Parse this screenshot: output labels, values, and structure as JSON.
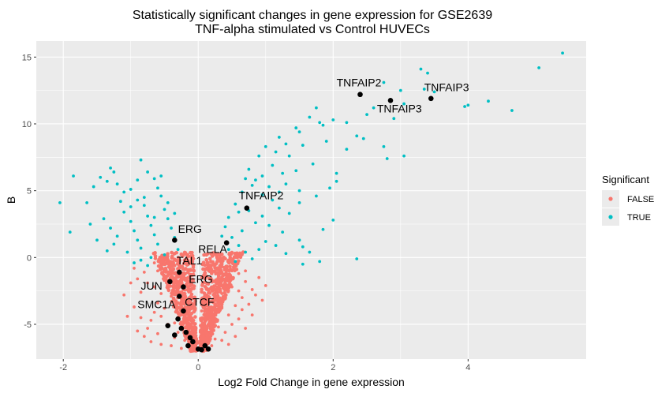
{
  "chart_data": {
    "type": "scatter",
    "title_line1": "Statistically significant changes in gene expression for GSE2639",
    "title_line2": "TNF-alpha stimulated vs Control HUVECs",
    "xlabel": "Log2 Fold Change in gene expression",
    "ylabel": "B",
    "xlim": [
      -2.4,
      5.75
    ],
    "ylim": [
      -7.6,
      16.2
    ],
    "x_ticks": [
      -2,
      0,
      2,
      4
    ],
    "y_ticks": [
      -5,
      0,
      5,
      10,
      15
    ],
    "grid": true,
    "legend": {
      "title": "Significant",
      "placement": "right",
      "entries": [
        {
          "label": "FALSE",
          "color": "#F8766D"
        },
        {
          "label": "TRUE",
          "color": "#00BFC4"
        }
      ]
    },
    "colors": {
      "false": "#F8766D",
      "true": "#00BFC4",
      "highlight": "#000000",
      "panel": "#EBEBEB",
      "grid": "#FFFFFF"
    },
    "series": [
      {
        "name": "TRUE",
        "color": "#00BFC4",
        "points": [
          [
            5.4,
            15.3
          ],
          [
            5.05,
            14.2
          ],
          [
            3.3,
            14.1
          ],
          [
            3.4,
            13.8
          ],
          [
            2.75,
            13.1
          ],
          [
            3.0,
            12.5
          ],
          [
            3.35,
            12.6
          ],
          [
            3.5,
            12.4
          ],
          [
            4.3,
            11.7
          ],
          [
            4.0,
            11.4
          ],
          [
            4.65,
            11.0
          ],
          [
            3.95,
            11.3
          ],
          [
            3.05,
            11.5
          ],
          [
            2.6,
            11.2
          ],
          [
            2.5,
            10.7
          ],
          [
            2.9,
            10.4
          ],
          [
            2.2,
            10.1
          ],
          [
            2.0,
            10.3
          ],
          [
            1.8,
            10.1
          ],
          [
            1.75,
            11.2
          ],
          [
            1.85,
            9.9
          ],
          [
            1.65,
            10.5
          ],
          [
            1.5,
            9.4
          ],
          [
            1.3,
            8.5
          ],
          [
            1.45,
            9.7
          ],
          [
            1.2,
            9.0
          ],
          [
            1.0,
            8.3
          ],
          [
            0.9,
            7.6
          ],
          [
            1.15,
            7.9
          ],
          [
            1.35,
            7.6
          ],
          [
            1.55,
            8.4
          ],
          [
            1.9,
            8.7
          ],
          [
            2.35,
            9.1
          ],
          [
            2.45,
            8.9
          ],
          [
            2.2,
            8.1
          ],
          [
            2.75,
            8.3
          ],
          [
            3.05,
            7.6
          ],
          [
            2.8,
            7.4
          ],
          [
            1.7,
            7.0
          ],
          [
            1.45,
            6.5
          ],
          [
            1.25,
            6.3
          ],
          [
            1.1,
            6.9
          ],
          [
            0.95,
            6.1
          ],
          [
            0.85,
            5.8
          ],
          [
            1.3,
            5.5
          ],
          [
            1.5,
            5.0
          ],
          [
            1.75,
            4.6
          ],
          [
            1.95,
            5.2
          ],
          [
            2.05,
            6.3
          ],
          [
            2.05,
            5.7
          ],
          [
            1.5,
            4.1
          ],
          [
            1.2,
            3.7
          ],
          [
            1.35,
            3.3
          ],
          [
            1.1,
            4.3
          ],
          [
            0.95,
            3.1
          ],
          [
            1.05,
            2.4
          ],
          [
            1.25,
            1.9
          ],
          [
            1.5,
            1.3
          ],
          [
            1.65,
            0.4
          ],
          [
            1.55,
            0.8
          ],
          [
            1.85,
            2.1
          ],
          [
            2.0,
            2.8
          ],
          [
            1.8,
            -0.3
          ],
          [
            1.55,
            -0.5
          ],
          [
            2.35,
            -0.1
          ],
          [
            0.75,
            6.6
          ],
          [
            0.65,
            4.9
          ],
          [
            0.55,
            4.0
          ],
          [
            0.45,
            3.0
          ],
          [
            0.4,
            2.3
          ],
          [
            0.5,
            1.5
          ],
          [
            0.6,
            0.9
          ],
          [
            0.7,
            0.4
          ],
          [
            0.8,
            -0.1
          ],
          [
            0.9,
            0.6
          ],
          [
            0.85,
            2.6
          ],
          [
            0.75,
            3.5
          ],
          [
            0.65,
            2.0
          ],
          [
            0.35,
            1.6
          ],
          [
            0.45,
            0.6
          ],
          [
            0.55,
            -0.3
          ],
          [
            0.95,
            4.7
          ],
          [
            0.8,
            5.4
          ],
          [
            1.2,
            4.9
          ],
          [
            1.05,
            5.3
          ],
          [
            0.7,
            5.9
          ],
          [
            1.0,
            1.2
          ],
          [
            1.15,
            0.9
          ],
          [
            1.3,
            0.3
          ],
          [
            0.6,
            3.4
          ],
          [
            -2.05,
            4.1
          ],
          [
            -1.85,
            6.1
          ],
          [
            -1.9,
            1.9
          ],
          [
            -1.65,
            4.1
          ],
          [
            -1.55,
            5.3
          ],
          [
            -1.45,
            6.0
          ],
          [
            -1.35,
            5.7
          ],
          [
            -1.3,
            6.7
          ],
          [
            -1.25,
            6.4
          ],
          [
            -1.2,
            5.5
          ],
          [
            -1.1,
            4.9
          ],
          [
            -1.0,
            5.1
          ],
          [
            -0.9,
            5.8
          ],
          [
            -0.85,
            7.3
          ],
          [
            -0.75,
            6.4
          ],
          [
            -0.65,
            5.9
          ],
          [
            -0.55,
            6.1
          ],
          [
            -1.4,
            2.9
          ],
          [
            -1.3,
            2.2
          ],
          [
            -1.2,
            1.6
          ],
          [
            -1.1,
            3.4
          ],
          [
            -1.0,
            2.7
          ],
          [
            -0.95,
            2.0
          ],
          [
            -0.9,
            1.3
          ],
          [
            -0.85,
            0.7
          ],
          [
            -0.8,
            3.9
          ],
          [
            -0.75,
            3.1
          ],
          [
            -0.7,
            2.4
          ],
          [
            -0.65,
            1.7
          ],
          [
            -0.6,
            1.0
          ],
          [
            -0.55,
            4.6
          ],
          [
            -0.5,
            3.6
          ],
          [
            -0.45,
            2.9
          ],
          [
            -0.4,
            2.2
          ],
          [
            -0.35,
            1.5
          ],
          [
            -0.3,
            0.6
          ],
          [
            -0.5,
            0.2
          ],
          [
            -0.7,
            0.0
          ],
          [
            -0.85,
            -0.2
          ],
          [
            -1.05,
            0.4
          ],
          [
            -1.25,
            1.0
          ],
          [
            -1.5,
            1.3
          ],
          [
            -0.6,
            5.2
          ],
          [
            -0.8,
            4.5
          ],
          [
            -1.0,
            3.8
          ],
          [
            -0.9,
            4.3
          ],
          [
            -0.45,
            4.1
          ],
          [
            -0.35,
            3.3
          ],
          [
            -0.65,
            3.0
          ],
          [
            -1.15,
            4.2
          ],
          [
            -0.95,
            -0.4
          ],
          [
            -0.75,
            -0.6
          ],
          [
            -1.35,
            0.5
          ],
          [
            -1.6,
            2.5
          ]
        ]
      },
      {
        "name": "FALSE",
        "color": "#F8766D",
        "points": [
          [
            0.55,
            -0.6
          ],
          [
            0.6,
            -1.2
          ],
          [
            0.7,
            -1.8
          ],
          [
            0.8,
            -2.4
          ],
          [
            0.65,
            -3.0
          ],
          [
            0.55,
            -3.6
          ],
          [
            0.45,
            -4.3
          ],
          [
            0.5,
            -5.0
          ],
          [
            0.4,
            -5.6
          ],
          [
            0.35,
            -6.2
          ],
          [
            0.2,
            -6.6
          ],
          [
            0.1,
            -6.9
          ],
          [
            0.05,
            -6.7
          ],
          [
            0.0,
            -6.4
          ],
          [
            0.1,
            -5.5
          ],
          [
            0.2,
            -4.6
          ],
          [
            0.3,
            -3.6
          ],
          [
            0.35,
            -2.7
          ],
          [
            0.4,
            -1.9
          ],
          [
            0.5,
            -1.0
          ],
          [
            0.45,
            -0.2
          ],
          [
            0.75,
            -3.5
          ],
          [
            0.85,
            -2.8
          ],
          [
            0.9,
            -1.5
          ],
          [
            0.3,
            -5.2
          ],
          [
            0.25,
            -4.0
          ],
          [
            0.15,
            -3.2
          ],
          [
            0.2,
            -2.2
          ],
          [
            0.3,
            -1.3
          ],
          [
            0.6,
            -4.6
          ],
          [
            0.7,
            -5.3
          ],
          [
            0.55,
            -5.9
          ],
          [
            0.45,
            -6.5
          ],
          [
            -0.35,
            -0.6
          ],
          [
            -0.4,
            -1.3
          ],
          [
            -0.45,
            -2.0
          ],
          [
            -0.55,
            -2.7
          ],
          [
            -0.6,
            -3.4
          ],
          [
            -0.65,
            -4.1
          ],
          [
            -0.7,
            -4.7
          ],
          [
            -0.75,
            -5.3
          ],
          [
            -0.8,
            -5.9
          ],
          [
            -0.7,
            -6.3
          ],
          [
            -0.55,
            -6.5
          ],
          [
            -0.4,
            -6.6
          ],
          [
            -0.25,
            -6.8
          ],
          [
            -0.1,
            -6.9
          ],
          [
            -0.2,
            -6.2
          ],
          [
            -0.3,
            -5.6
          ],
          [
            -0.35,
            -4.9
          ],
          [
            -0.3,
            -4.1
          ],
          [
            -0.25,
            -3.3
          ],
          [
            -0.3,
            -2.5
          ],
          [
            -0.25,
            -1.7
          ],
          [
            -0.2,
            -0.9
          ],
          [
            -0.15,
            -0.2
          ],
          [
            -0.9,
            -1.6
          ],
          [
            -0.85,
            -2.6
          ],
          [
            -0.95,
            -3.7
          ],
          [
            -0.85,
            -4.5
          ],
          [
            -0.9,
            -5.5
          ],
          [
            -1.05,
            -4.4
          ],
          [
            -0.5,
            -0.1
          ],
          [
            -0.6,
            -1.0
          ],
          [
            -0.75,
            -1.9
          ],
          [
            -0.65,
            -2.2
          ],
          [
            -0.5,
            -3.8
          ],
          [
            -0.45,
            -5.0
          ],
          [
            -0.6,
            -5.7
          ],
          [
            -0.15,
            -4.5
          ],
          [
            -0.1,
            -3.6
          ],
          [
            -0.05,
            -5.8
          ],
          [
            0.05,
            -4.0
          ],
          [
            0.15,
            -2.0
          ],
          [
            0.25,
            -1.0
          ],
          [
            0.35,
            -0.3
          ],
          [
            0.5,
            -2.2
          ],
          [
            0.65,
            -3.9
          ],
          [
            0.8,
            -4.3
          ],
          [
            0.25,
            -6.1
          ],
          [
            -0.15,
            -1.5
          ],
          [
            -0.4,
            -2.9
          ],
          [
            -0.55,
            -4.4
          ],
          [
            -0.35,
            -6.0
          ],
          [
            -0.65,
            -0.4
          ],
          [
            -0.8,
            -1.1
          ],
          [
            0.4,
            -3.1
          ],
          [
            0.6,
            -2.5
          ],
          [
            0.7,
            -1.0
          ],
          [
            0.15,
            -5.0
          ],
          [
            -1.0,
            -1.9
          ],
          [
            -1.1,
            -2.8
          ],
          [
            -0.95,
            -0.8
          ],
          [
            1.0,
            -2.1
          ],
          [
            0.95,
            -3.2
          ]
        ]
      }
    ],
    "highlighted": [
      {
        "x": 2.4,
        "y": 12.2,
        "label": "TNFAIP2"
      },
      {
        "x": 2.85,
        "y": 11.75,
        "label": "TNFAIP3"
      },
      {
        "x": 3.45,
        "y": 11.9,
        "label": "TNFAIP3"
      },
      {
        "x": 0.72,
        "y": 3.7,
        "label": "TNFAIP2"
      },
      {
        "x": -0.35,
        "y": 1.3,
        "label": "ERG"
      },
      {
        "x": 0.42,
        "y": 1.1,
        "label": "RELA"
      },
      {
        "x": -0.28,
        "y": -1.1,
        "label": "TAL1"
      },
      {
        "x": -0.42,
        "y": -1.8,
        "label": "JUN"
      },
      {
        "x": -0.22,
        "y": -2.2,
        "label": "ERG"
      },
      {
        "x": -0.28,
        "y": -2.9,
        "label": "SMC1A"
      },
      {
        "x": -0.22,
        "y": -4.0,
        "label": "CTCF"
      },
      {
        "x": -0.45,
        "y": -5.1,
        "label": ""
      },
      {
        "x": -0.35,
        "y": -5.8,
        "label": ""
      },
      {
        "x": -0.25,
        "y": -5.3,
        "label": ""
      },
      {
        "x": -0.18,
        "y": -5.6,
        "label": ""
      },
      {
        "x": -0.12,
        "y": -6.0,
        "label": ""
      },
      {
        "x": -0.08,
        "y": -6.3,
        "label": ""
      },
      {
        "x": -0.15,
        "y": -6.6,
        "label": ""
      },
      {
        "x": 0.0,
        "y": -6.85,
        "label": ""
      },
      {
        "x": 0.05,
        "y": -6.9,
        "label": ""
      },
      {
        "x": 0.1,
        "y": -6.6,
        "label": ""
      },
      {
        "x": 0.15,
        "y": -6.85,
        "label": ""
      },
      {
        "x": -0.3,
        "y": -4.6,
        "label": ""
      }
    ],
    "annotations": [
      {
        "text": "TNFAIP2",
        "x": 2.05,
        "y": 12.8
      },
      {
        "text": "TNFAIP3",
        "x": 2.65,
        "y": 10.85
      },
      {
        "text": "TNFAIP3",
        "x": 3.35,
        "y": 12.45
      },
      {
        "text": "TNFAIP2",
        "x": 0.6,
        "y": 4.35
      },
      {
        "text": "ERG",
        "x": -0.3,
        "y": 1.85
      },
      {
        "text": "RELA",
        "x": 0.0,
        "y": 0.35
      },
      {
        "text": "TAL1",
        "x": -0.32,
        "y": -0.5
      },
      {
        "text": "ERG",
        "x": -0.14,
        "y": -1.9
      },
      {
        "text": "JUN",
        "x": -0.85,
        "y": -2.4
      },
      {
        "text": "SMC1A",
        "x": -0.9,
        "y": -3.8
      },
      {
        "text": "CTCF",
        "x": -0.2,
        "y": -3.6
      }
    ]
  }
}
